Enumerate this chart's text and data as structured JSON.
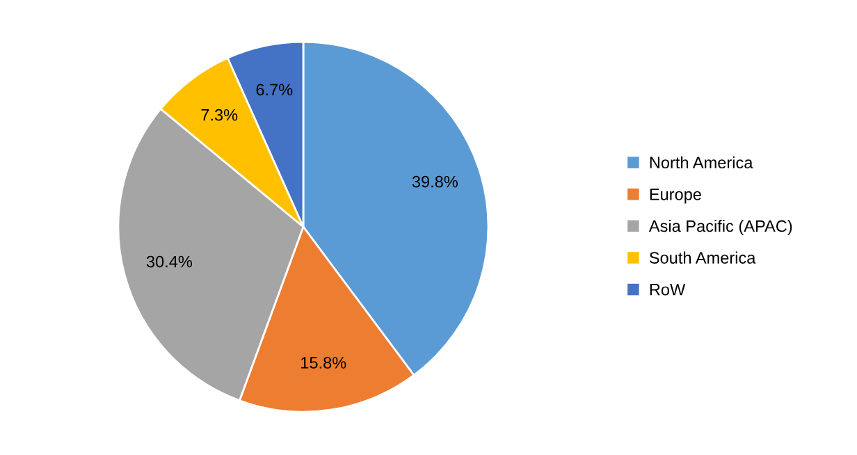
{
  "chart_data": {
    "type": "pie",
    "categories": [
      "North America",
      "Europe",
      "Asia Pacific (APAC)",
      "South America",
      "RoW"
    ],
    "values": [
      39.8,
      15.8,
      30.4,
      7.3,
      6.7
    ],
    "colors": [
      "#5b9bd5",
      "#ed7d31",
      "#a5a5a5",
      "#ffc000",
      "#4472c4"
    ],
    "value_labels": [
      "39.8%",
      "15.8%",
      "30.4%",
      "7.3%",
      "6.7%"
    ],
    "legend": "right"
  }
}
